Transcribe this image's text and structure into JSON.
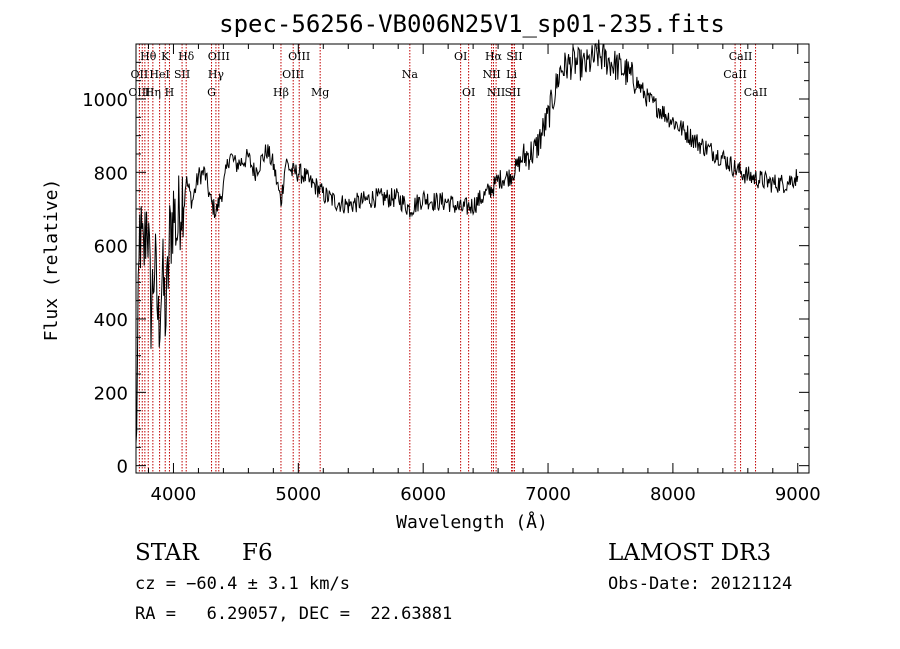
{
  "chart_data": {
    "type": "line",
    "title": "spec-56256-VB006N25V1_sp01-235.fits",
    "xlabel": "Wavelength (Å)",
    "ylabel": "Flux (relative)",
    "xlim": [
      3700,
      9090
    ],
    "ylim": [
      -20,
      1150
    ],
    "xticks": [
      4000,
      5000,
      6000,
      7000,
      8000,
      9000
    ],
    "yticks": [
      0,
      200,
      400,
      600,
      800,
      1000
    ],
    "grid": false,
    "series": [
      {
        "name": "flux",
        "x": [
          3700,
          3730,
          3760,
          3790,
          3820,
          3850,
          3880,
          3910,
          3940,
          3970,
          4000,
          4030,
          4060,
          4100,
          4150,
          4200,
          4250,
          4300,
          4340,
          4400,
          4450,
          4500,
          4550,
          4600,
          4650,
          4700,
          4750,
          4800,
          4861,
          4900,
          4950,
          5000,
          5050,
          5100,
          5150,
          5200,
          5300,
          5400,
          5500,
          5600,
          5700,
          5800,
          5893,
          6000,
          6100,
          6200,
          6300,
          6400,
          6500,
          6563,
          6600,
          6700,
          6800,
          6900,
          7000,
          7100,
          7200,
          7300,
          7400,
          7500,
          7600,
          7700,
          7800,
          7900,
          8000,
          8100,
          8200,
          8300,
          8400,
          8500,
          8600,
          8700,
          8800,
          8900,
          9000
        ],
        "y": [
          20,
          640,
          560,
          700,
          420,
          560,
          380,
          520,
          400,
          620,
          700,
          640,
          730,
          780,
          720,
          790,
          800,
          720,
          690,
          760,
          850,
          820,
          830,
          840,
          800,
          830,
          860,
          820,
          720,
          830,
          800,
          800,
          790,
          770,
          760,
          740,
          720,
          710,
          720,
          730,
          730,
          730,
          700,
          730,
          720,
          720,
          700,
          710,
          740,
          760,
          780,
          790,
          840,
          860,
          950,
          1080,
          1100,
          1090,
          1120,
          1100,
          1080,
          1050,
          1000,
          970,
          940,
          910,
          880,
          860,
          840,
          810,
          790,
          780,
          770,
          770,
          790
        ]
      }
    ],
    "line_labels": [
      {
        "text": "Hθ",
        "x": 3798,
        "row": 0
      },
      {
        "text": "K",
        "x": 3934,
        "row": 0
      },
      {
        "text": "Hδ",
        "x": 4102,
        "row": 0
      },
      {
        "text": "OIII",
        "x": 4363,
        "row": 0
      },
      {
        "text": "OIII",
        "x": 5007,
        "row": 0
      },
      {
        "text": "OI",
        "x": 6300,
        "row": 0
      },
      {
        "text": "Hα",
        "x": 6563,
        "row": 0
      },
      {
        "text": "SII",
        "x": 6731,
        "row": 0
      },
      {
        "text": "CaII",
        "x": 8542,
        "row": 0
      },
      {
        "text": "OII",
        "x": 3727,
        "row": 1
      },
      {
        "text": "HeI",
        "x": 3889,
        "row": 1
      },
      {
        "text": "SII",
        "x": 4069,
        "row": 1
      },
      {
        "text": "Hγ",
        "x": 4340,
        "row": 1
      },
      {
        "text": "OIII",
        "x": 4959,
        "row": 1
      },
      {
        "text": "Na",
        "x": 5893,
        "row": 1
      },
      {
        "text": "NII",
        "x": 6548,
        "row": 1
      },
      {
        "text": "Li",
        "x": 6708,
        "row": 1
      },
      {
        "text": "CaII",
        "x": 8498,
        "row": 1
      },
      {
        "text": "OIII",
        "x": 3727,
        "row": 2
      },
      {
        "text": "Hη",
        "x": 3835,
        "row": 2
      },
      {
        "text": "H",
        "x": 3968,
        "row": 2
      },
      {
        "text": "G",
        "x": 4305,
        "row": 2
      },
      {
        "text": "Hβ",
        "x": 4861,
        "row": 2
      },
      {
        "text": "Mg",
        "x": 5175,
        "row": 2
      },
      {
        "text": "OI",
        "x": 6364,
        "row": 2
      },
      {
        "text": "NII",
        "x": 6584,
        "row": 2
      },
      {
        "text": "SII",
        "x": 6717,
        "row": 2
      },
      {
        "text": "CaII",
        "x": 8662,
        "row": 2
      }
    ],
    "line_markers": [
      3727,
      3750,
      3771,
      3798,
      3835,
      3889,
      3934,
      3968,
      4069,
      4102,
      4305,
      4340,
      4363,
      4861,
      4959,
      5007,
      5175,
      5893,
      6300,
      6364,
      6548,
      6563,
      6584,
      6708,
      6717,
      6731,
      8498,
      8542,
      8662
    ],
    "marker_color": "#c00000"
  },
  "info": {
    "object_class": "STAR",
    "subclass": "F6",
    "survey": "LAMOST DR3",
    "redshift": "cz = −60.4 ± 3.1 km/s",
    "obs_date": "Obs-Date: 20121124",
    "coords": "RA =   6.29057, DEC =  22.63881"
  }
}
